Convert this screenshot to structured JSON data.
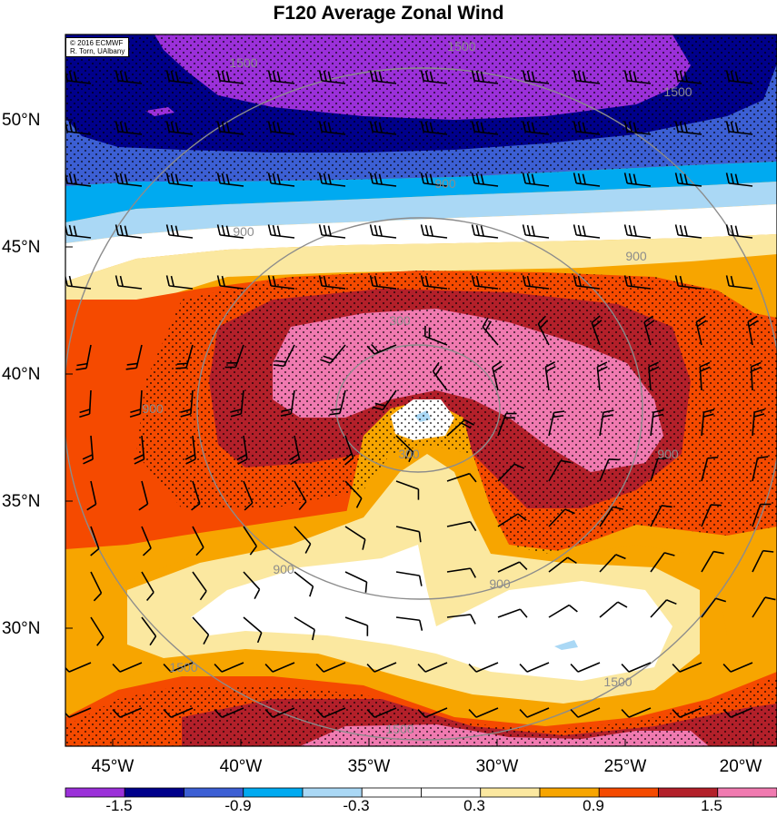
{
  "title": "F120 Average Zonal Wind",
  "credit": {
    "line1": "© 2016 ECMWF",
    "line2": "R. Torn, UAlbany"
  },
  "latitude_labels": [
    "50°N",
    "45°N",
    "40°N",
    "35°N",
    "30°N"
  ],
  "longitude_labels": [
    "45°W",
    "40°W",
    "35°W",
    "30°W",
    "25°W",
    "20°W"
  ],
  "contour_labels": [
    "1500",
    "1500",
    "1500",
    "1500",
    "1500",
    "900",
    "900",
    "900",
    "900",
    "900",
    "900",
    "900",
    "300",
    "300",
    "1500"
  ],
  "colorbar": {
    "tick_labels": [
      "-1.5",
      "-0.9",
      "-0.3",
      "0.3",
      "0.9",
      "1.5"
    ],
    "colors": [
      "#9b30d9",
      "#00008b",
      "#3c5fd4",
      "#00aaf0",
      "#aad8f5",
      "#ffffff",
      "#ffffff",
      "#fbe8a0",
      "#f7a500",
      "#f54a00",
      "#b3202a",
      "#f07ab0"
    ]
  },
  "fill_colors": {
    "purple": "#9b30d9",
    "navy": "#00008b",
    "royal": "#3c5fd4",
    "cyan": "#00aaf0",
    "lightblue": "#aad8f5",
    "white": "#ffffff",
    "lightyellow": "#fbe8a0",
    "orange": "#f7a500",
    "redorange": "#f54a00",
    "darkred": "#b3202a",
    "pink": "#f07ab0"
  },
  "contour_color": "#8c8c8c",
  "barb_color": "#000000"
}
